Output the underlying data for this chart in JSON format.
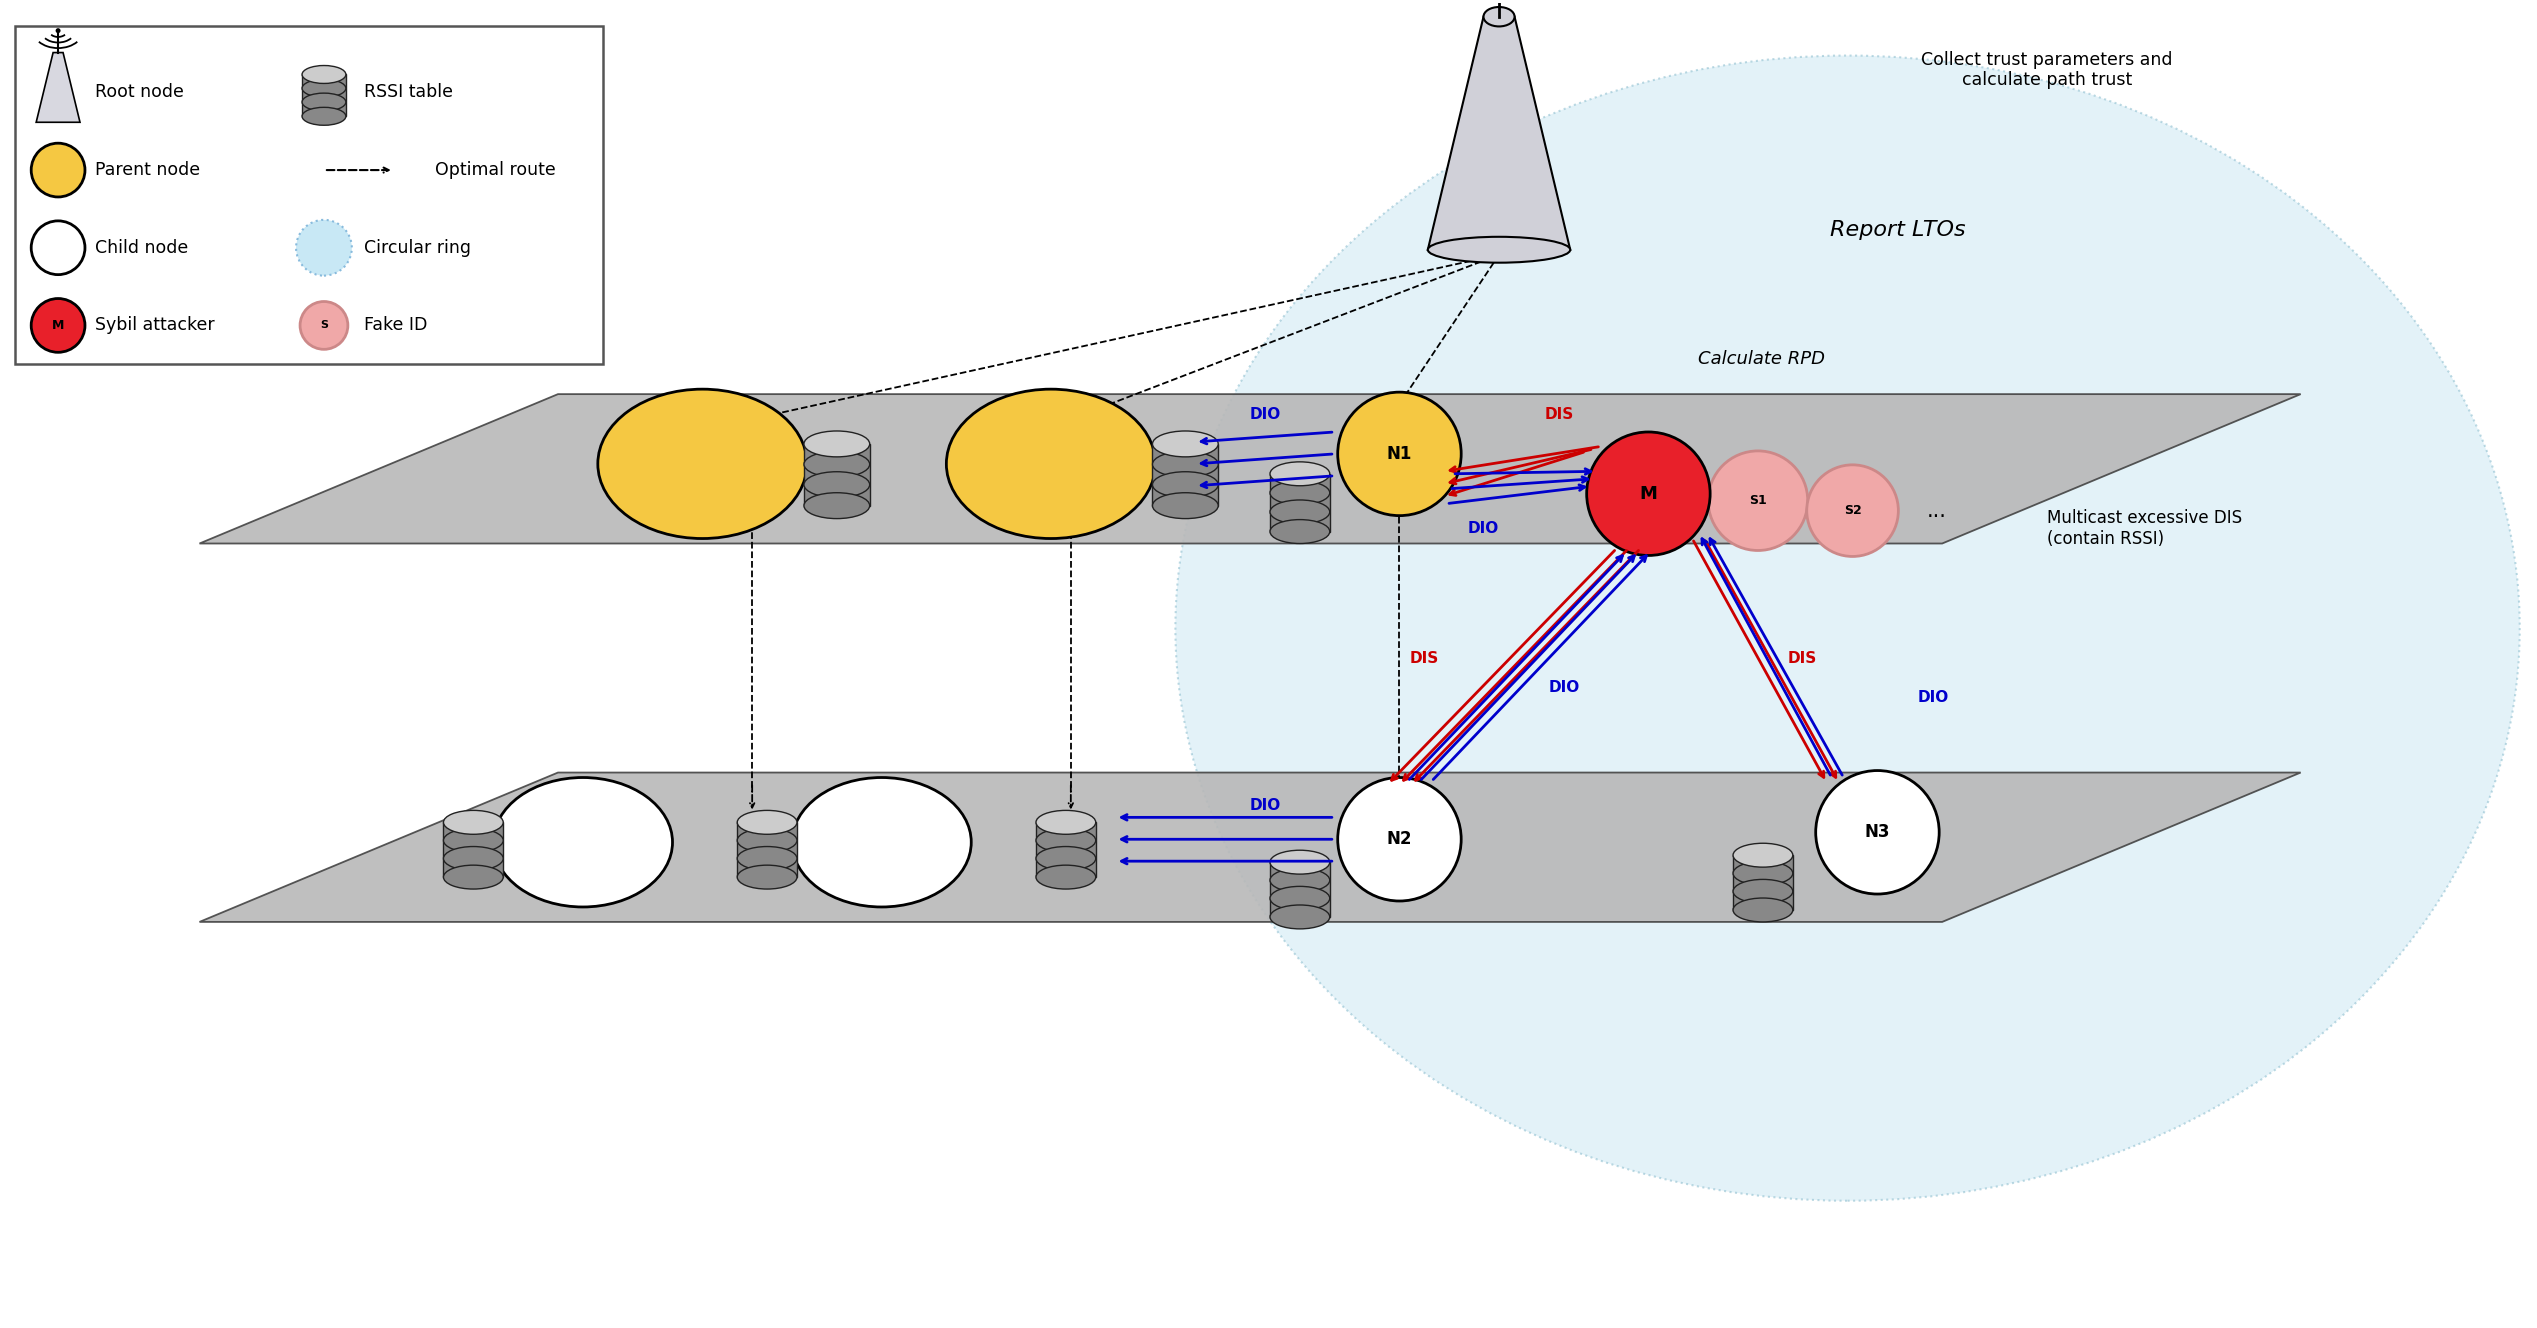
{
  "bg_color": "#ffffff",
  "plane_color": "#b8b8b8",
  "light_blue_bg": "#cce8f4",
  "yellow_node": "#f5c842",
  "red_node": "#e8202a",
  "pink_node": "#f0a8a8",
  "white_node": "#ffffff",
  "cyl_color": "#888888",
  "arrow_blue": "#0000cc",
  "arrow_red": "#cc0000",
  "legend": {
    "row1_left": "Root node",
    "row1_right": "RSSI table",
    "row2_left": "Parent node",
    "row2_right": "Optimal route",
    "row3_left": "Child node",
    "row3_right": "Circular ring",
    "row4_left": "Sybil attacker",
    "row4_right": "Fake ID"
  },
  "text_collect": "Collect trust parameters and\ncalculate path trust",
  "text_report": "Report LTOs",
  "text_calc": "Calculate RPD",
  "text_multicast": "Multicast excessive DIS\n(contain RSSI)"
}
